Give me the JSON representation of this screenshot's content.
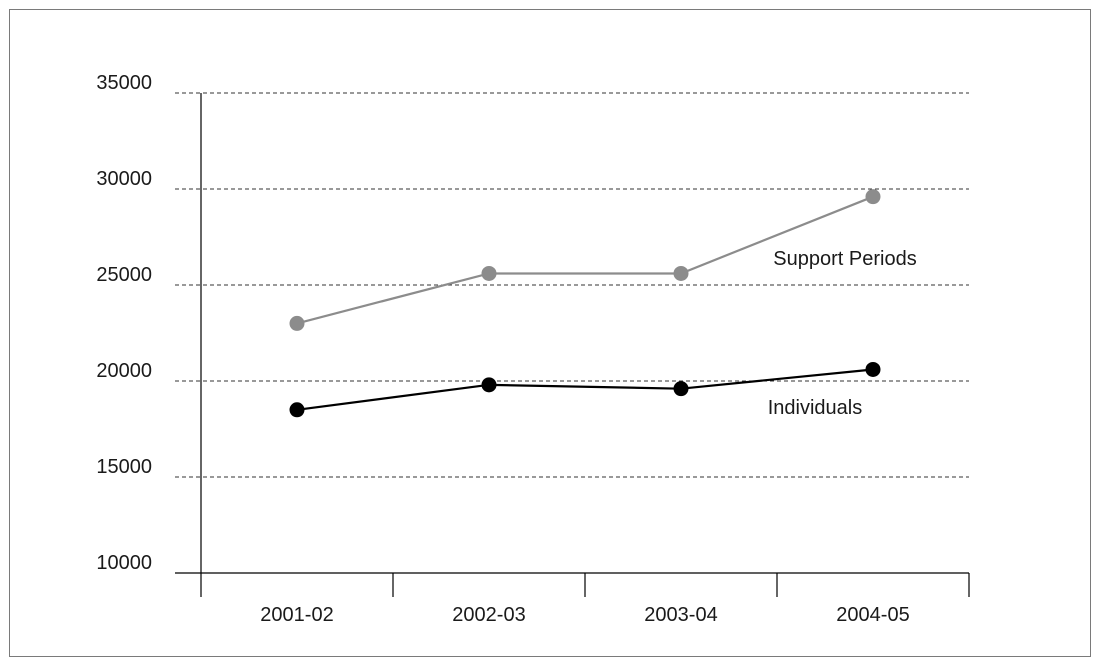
{
  "chart_data": {
    "type": "line",
    "title": "",
    "xlabel": "",
    "ylabel": "",
    "categories": [
      "2001-02",
      "2002-03",
      "2003-04",
      "2004-05"
    ],
    "ylim": [
      10000,
      35000
    ],
    "yticks": [
      "10000",
      "15000",
      "20000",
      "25000",
      "30000",
      "35000"
    ],
    "grid": true,
    "legend": "none",
    "series": [
      {
        "name": "Support Periods",
        "values": [
          23000,
          25600,
          25600,
          29600
        ],
        "color": "#8c8c8c"
      },
      {
        "name": "Individuals",
        "values": [
          18500,
          19800,
          19600,
          20600
        ],
        "color": "#000000"
      }
    ]
  }
}
